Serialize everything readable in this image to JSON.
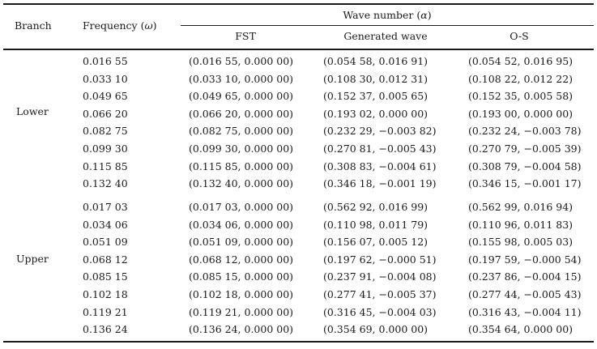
{
  "headers": {
    "branch": "Branch",
    "frequency_prefix": "Frequency (",
    "frequency_symbol": "ω",
    "frequency_suffix": ")",
    "wave_prefix": "Wave number (",
    "wave_symbol": "α",
    "wave_suffix": ")",
    "fst": "FST",
    "generated": "Generated wave",
    "os": "O-S"
  },
  "groups": [
    {
      "branch": "Lower",
      "rows": [
        {
          "freq": "0.016 55",
          "fst": "(0.016 55, 0.000 00)",
          "gen": "(0.054 58, 0.016 91)",
          "os": "(0.054 52, 0.016 95)"
        },
        {
          "freq": "0.033 10",
          "fst": "(0.033 10, 0.000 00)",
          "gen": "(0.108 30, 0.012 31)",
          "os": "(0.108 22, 0.012 22)"
        },
        {
          "freq": "0.049 65",
          "fst": "(0.049 65, 0.000 00)",
          "gen": "(0.152 37, 0.005 65)",
          "os": "(0.152 35, 0.005 58)"
        },
        {
          "freq": "0.066 20",
          "fst": "(0.066 20, 0.000 00)",
          "gen": "(0.193 02, 0.000 00)",
          "os": "(0.193 00, 0.000 00)"
        },
        {
          "freq": "0.082 75",
          "fst": "(0.082 75, 0.000 00)",
          "gen": "(0.232 29, −0.003 82)",
          "os": "(0.232 24, −0.003 78)"
        },
        {
          "freq": "0.099 30",
          "fst": "(0.099 30, 0.000 00)",
          "gen": "(0.270 81, −0.005 43)",
          "os": "(0.270 79, −0.005 39)"
        },
        {
          "freq": "0.115 85",
          "fst": "(0.115 85, 0.000 00)",
          "gen": "(0.308 83, −0.004 61)",
          "os": "(0.308 79, −0.004 58)"
        },
        {
          "freq": "0.132 40",
          "fst": "(0.132 40, 0.000 00)",
          "gen": "(0.346 18, −0.001 19)",
          "os": "(0.346 15, −0.001 17)"
        }
      ]
    },
    {
      "branch": "Upper",
      "rows": [
        {
          "freq": "0.017 03",
          "fst": "(0.017 03, 0.000 00)",
          "gen": "(0.562 92, 0.016 99)",
          "os": "(0.562 99, 0.016 94)"
        },
        {
          "freq": "0.034 06",
          "fst": "(0.034 06, 0.000 00)",
          "gen": "(0.110 98, 0.011 79)",
          "os": "(0.110 96, 0.011 83)"
        },
        {
          "freq": "0.051 09",
          "fst": "(0.051 09, 0.000 00)",
          "gen": "(0.156 07, 0.005 12)",
          "os": "(0.155 98, 0.005 03)"
        },
        {
          "freq": "0.068 12",
          "fst": "(0.068 12, 0.000 00)",
          "gen": "(0.197 62, −0.000 51)",
          "os": "(0.197 59, −0.000 54)"
        },
        {
          "freq": "0.085 15",
          "fst": "(0.085 15, 0.000 00)",
          "gen": "(0.237 91, −0.004 08)",
          "os": "(0.237 86, −0.004 15)"
        },
        {
          "freq": "0.102 18",
          "fst": "(0.102 18, 0.000 00)",
          "gen": "(0.277 41, −0.005 37)",
          "os": "(0.277 44, −0.005 43)"
        },
        {
          "freq": "0.119 21",
          "fst": "(0.119 21, 0.000 00)",
          "gen": "(0.316 45, −0.004 03)",
          "os": "(0.316 43, −0.004 11)"
        },
        {
          "freq": "0.136 24",
          "fst": "(0.136 24, 0.000 00)",
          "gen": "(0.354 69, 0.000 00)",
          "os": "(0.354 64, 0.000 00)"
        }
      ]
    }
  ]
}
